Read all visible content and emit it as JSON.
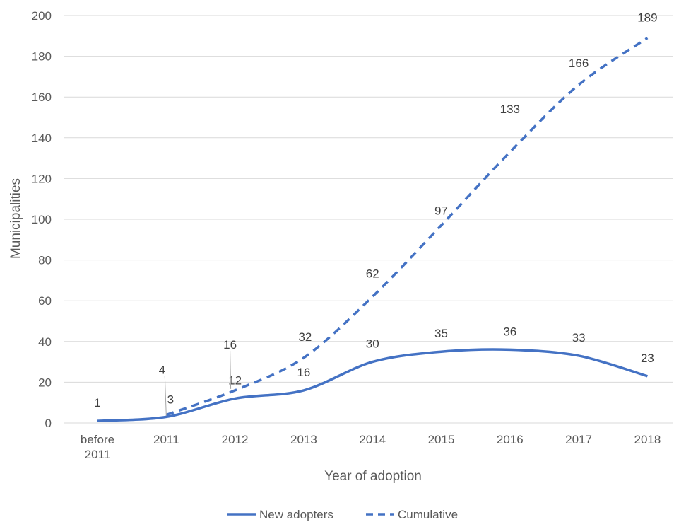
{
  "chart_data": {
    "type": "line",
    "categories": [
      [
        "before",
        "2011"
      ],
      [
        "2011"
      ],
      [
        "2012"
      ],
      [
        "2013"
      ],
      [
        "2014"
      ],
      [
        "2015"
      ],
      [
        "2016"
      ],
      [
        "2017"
      ],
      [
        "2018"
      ]
    ],
    "series": [
      {
        "name": "New adopters",
        "values": [
          1,
          3,
          12,
          16,
          30,
          35,
          36,
          33,
          23
        ],
        "style": "solid",
        "color": "#4472c4"
      },
      {
        "name": "Cumulative",
        "values": [
          null,
          4,
          16,
          32,
          62,
          97,
          133,
          166,
          189
        ],
        "style": "dashed",
        "color": "#4472c4"
      }
    ],
    "data_labels": {
      "New adopters": [
        "1",
        "3",
        "12",
        "16",
        "30",
        "35",
        "36",
        "33",
        "23"
      ],
      "Cumulative": [
        "",
        "4",
        "16",
        "32",
        "62",
        "97",
        "133",
        "166",
        "189"
      ]
    },
    "xlabel": "Year of adoption",
    "ylabel": "Municipalities",
    "ylim": [
      0,
      200
    ],
    "yticks": [
      "0",
      "20",
      "40",
      "60",
      "80",
      "100",
      "120",
      "140",
      "160",
      "180",
      "200"
    ],
    "grid": true,
    "legend_position": "bottom"
  }
}
